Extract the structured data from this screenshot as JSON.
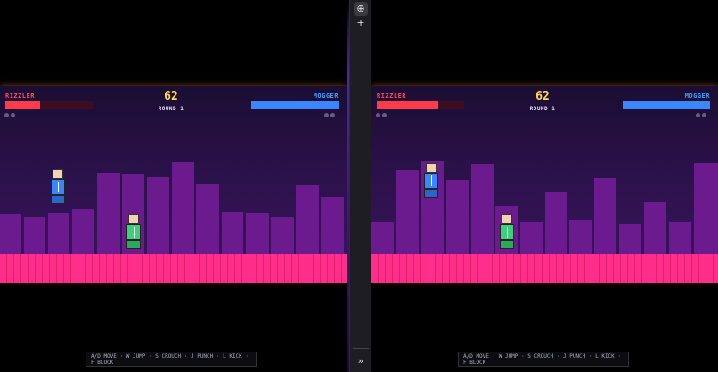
{
  "hud": {
    "p1_name": "RIZZLER",
    "p2_name": "MOGGER",
    "timer": "62",
    "round": "ROUND 1"
  },
  "colors": {
    "p1": "#ff3b4b",
    "p2": "#3a86ff",
    "floor": "#ff2e8a",
    "buildings": "#6b1b8e",
    "timer": "#ffd84a"
  },
  "panes": [
    {
      "id": "left",
      "p1_health": 0.4,
      "p2_health": 1.0
    },
    {
      "id": "right",
      "p1_health": 0.7,
      "p2_health": 1.0
    }
  ],
  "controls": "A/D MOVE · W JUMP · S CROUCH · J PUNCH · L KICK · F BLOCK",
  "sidebar": {
    "icons": [
      "circle-plus-icon",
      "plus-icon",
      "double-chevron-right-icon"
    ],
    "plus_glyph": "+",
    "chev_glyph": "»",
    "circle_glyph": "⊕"
  }
}
